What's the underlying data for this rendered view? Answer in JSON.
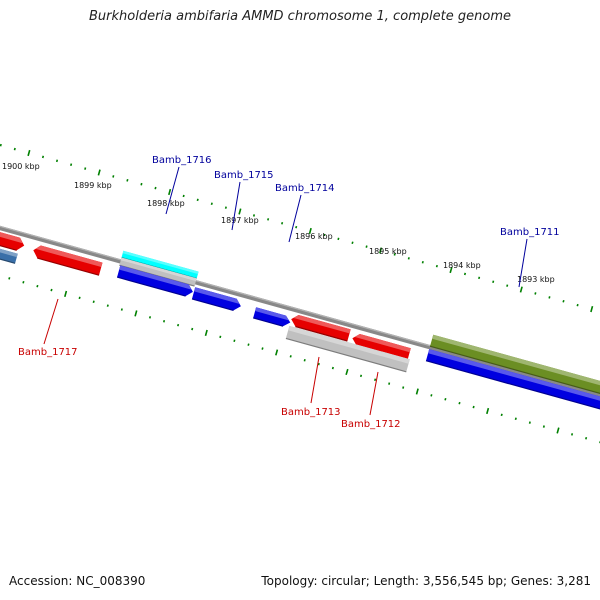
{
  "title": "Burkholderia ambifaria AMMD chromosome 1, complete genome",
  "footer": {
    "accession": "Accession: NC_008390",
    "summary": "Topology: circular; Length: 3,556,545 bp; Genes: 3,281"
  },
  "colors": {
    "forward_label": "#00009c",
    "reverse_label": "#c80000",
    "ruler_ticks": "#008000",
    "backbone": "#888888"
  },
  "scale_labels": [
    "1900 kbp",
    "1899 kbp",
    "1898 kbp",
    "1897 kbp",
    "1896 kbp",
    "1895 kbp",
    "1894 kbp",
    "1893 kbp"
  ],
  "features": [
    {
      "kind": "gene",
      "strand": "reverse",
      "color": "#e60000"
    },
    {
      "kind": "gene",
      "strand": "reverse",
      "color": "#e60000"
    },
    {
      "kind": "gene",
      "strand": "forward",
      "color": "#00ffff"
    },
    {
      "kind": "gene",
      "strand": "forward",
      "color": "#c0c0c0"
    },
    {
      "kind": "gene",
      "strand": "forward",
      "color": "#0000e0"
    },
    {
      "kind": "gene",
      "strand": "forward",
      "color": "#0000e0"
    },
    {
      "kind": "gene",
      "strand": "forward",
      "color": "#0000e0"
    },
    {
      "kind": "gene",
      "strand": "reverse",
      "color": "#3a6fa8"
    },
    {
      "kind": "gene",
      "strand": "reverse",
      "color": "#e60000"
    },
    {
      "kind": "gene",
      "strand": "reverse",
      "color": "#e60000"
    },
    {
      "kind": "gene",
      "strand": "reverse",
      "color": "#c0c0c0"
    },
    {
      "kind": "gene",
      "strand": "forward",
      "color": "#6b8e23"
    },
    {
      "kind": "gene",
      "strand": "forward",
      "color": "#0000e0"
    }
  ],
  "gene_labels": [
    {
      "text": "Bamb_1716",
      "strand": "forward"
    },
    {
      "text": "Bamb_1715",
      "strand": "forward"
    },
    {
      "text": "Bamb_1714",
      "strand": "forward"
    },
    {
      "text": "Bamb_1711",
      "strand": "forward"
    },
    {
      "text": "Bamb_1717",
      "strand": "reverse"
    },
    {
      "text": "Bamb_1713",
      "strand": "reverse"
    },
    {
      "text": "Bamb_1712",
      "strand": "reverse"
    }
  ]
}
